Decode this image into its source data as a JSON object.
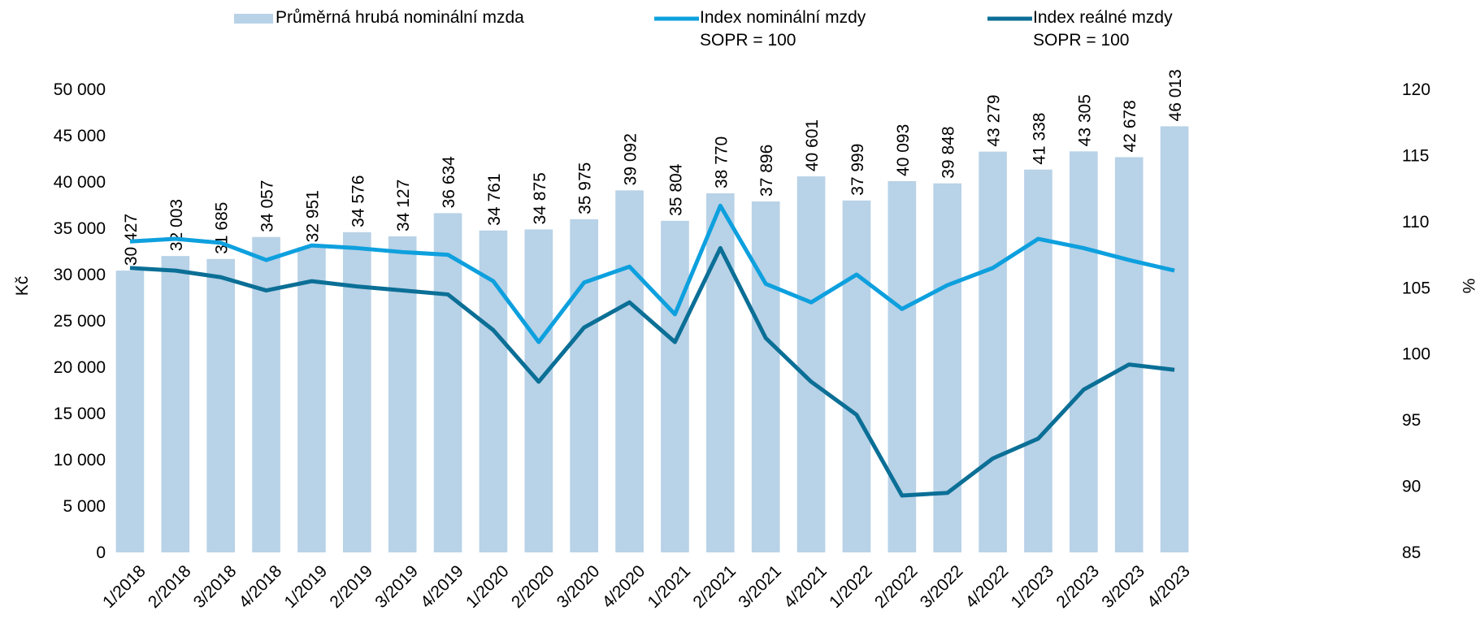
{
  "chart_data": {
    "type": "bar_line",
    "categories": [
      "1/2018",
      "2/2018",
      "3/2018",
      "4/2018",
      "1/2019",
      "2/2019",
      "3/2019",
      "4/2019",
      "1/2020",
      "2/2020",
      "3/2020",
      "4/2020",
      "1/2021",
      "2/2021",
      "3/2021",
      "4/2021",
      "1/2022",
      "2/2022",
      "3/2022",
      "4/2022",
      "1/2023",
      "2/2023",
      "3/2023",
      "4/2023"
    ],
    "series": [
      {
        "name": "Průměrná hrubá nominální mzda",
        "type": "bar",
        "color": "#b8d2e7",
        "values": [
          30427,
          32003,
          31685,
          34057,
          32951,
          34576,
          34127,
          36634,
          34761,
          34875,
          35975,
          39092,
          35804,
          38770,
          37896,
          40601,
          37999,
          40093,
          39848,
          43279,
          41338,
          43305,
          42678,
          46013
        ],
        "value_labels": [
          "30 427",
          "32 003",
          "31 685",
          "34 057",
          "32 951",
          "34 576",
          "34 127",
          "36 634",
          "34 761",
          "34 875",
          "35 975",
          "39 092",
          "35 804",
          "38 770",
          "37 896",
          "40 601",
          "37 999",
          "40 093",
          "39 848",
          "43 279",
          "41 338",
          "43 305",
          "42 678",
          "46 013"
        ]
      },
      {
        "name": "Index nominální mzdy\nSOPR = 100",
        "type": "line",
        "axis": "y2",
        "color": "#0ea0de",
        "values": [
          108.5,
          108.7,
          108.4,
          107.1,
          108.2,
          108.0,
          107.7,
          107.5,
          105.5,
          100.9,
          105.4,
          106.6,
          103.0,
          111.2,
          105.3,
          103.9,
          106.0,
          103.4,
          105.2,
          106.5,
          108.7,
          108.0,
          107.1,
          106.3
        ]
      },
      {
        "name": "Index reálné mzdy\nSOPR = 100",
        "type": "line",
        "axis": "y2",
        "color": "#0b6f96",
        "values": [
          106.5,
          106.3,
          105.8,
          104.8,
          105.5,
          105.1,
          104.8,
          104.5,
          101.8,
          97.9,
          102.0,
          103.9,
          100.9,
          108.0,
          101.2,
          97.9,
          95.4,
          89.3,
          89.5,
          92.1,
          93.6,
          97.3,
          99.2,
          98.8
        ]
      }
    ],
    "y_label": "Kč",
    "y2_label": "%",
    "ylim": [
      0,
      50000
    ],
    "yticks": [
      {
        "value": 0,
        "label": "0"
      },
      {
        "value": 5000,
        "label": "5 000"
      },
      {
        "value": 10000,
        "label": "10 000"
      },
      {
        "value": 15000,
        "label": "15 000"
      },
      {
        "value": 20000,
        "label": "20 000"
      },
      {
        "value": 25000,
        "label": "25 000"
      },
      {
        "value": 30000,
        "label": "30 000"
      },
      {
        "value": 35000,
        "label": "35 000"
      },
      {
        "value": 40000,
        "label": "40 000"
      },
      {
        "value": 45000,
        "label": "45 000"
      },
      {
        "value": 50000,
        "label": "50 000"
      }
    ],
    "y2lim": [
      85,
      120
    ],
    "y2ticks": [
      85,
      90,
      95,
      100,
      105,
      110,
      115,
      120
    ],
    "grid": false,
    "legend": "top"
  }
}
